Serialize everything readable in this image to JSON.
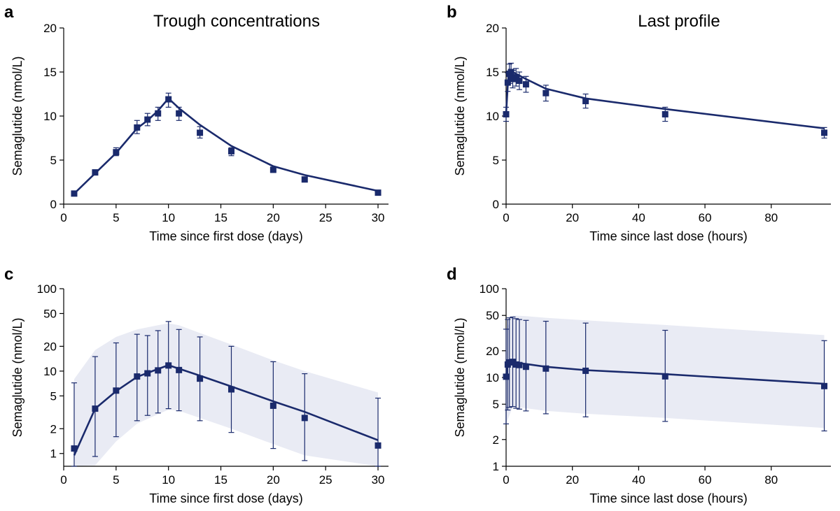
{
  "colors": {
    "series": "#1a2a6c",
    "band": "#e9ebf4",
    "axis": "#000000"
  },
  "chart_data": [
    {
      "id": "a",
      "panel_label": "a",
      "type": "line",
      "title": "Trough concentrations",
      "xlabel": "Time since first dose (days)",
      "ylabel": "Semaglutide (nmol/L)",
      "xlim": [
        0,
        31
      ],
      "ylim": [
        0,
        20
      ],
      "yscale": "linear",
      "xticks": [
        0,
        5,
        10,
        15,
        20,
        25,
        30
      ],
      "yticks": [
        0,
        5,
        10,
        15,
        20
      ],
      "observed": [
        {
          "x": 1,
          "y": 1.2,
          "lo": 1.1,
          "hi": 1.3
        },
        {
          "x": 3,
          "y": 3.6,
          "lo": 3.3,
          "hi": 3.9
        },
        {
          "x": 5,
          "y": 5.9,
          "lo": 5.5,
          "hi": 6.4
        },
        {
          "x": 7,
          "y": 8.7,
          "lo": 8.0,
          "hi": 9.5
        },
        {
          "x": 8,
          "y": 9.6,
          "lo": 8.9,
          "hi": 10.3
        },
        {
          "x": 9,
          "y": 10.3,
          "lo": 9.5,
          "hi": 11.0
        },
        {
          "x": 10,
          "y": 11.9,
          "lo": 11.0,
          "hi": 12.6
        },
        {
          "x": 11,
          "y": 10.3,
          "lo": 9.5,
          "hi": 11.0
        },
        {
          "x": 13,
          "y": 8.1,
          "lo": 7.5,
          "hi": 8.8
        },
        {
          "x": 16,
          "y": 6.0,
          "lo": 5.5,
          "hi": 6.4
        },
        {
          "x": 20,
          "y": 3.9,
          "lo": 3.6,
          "hi": 4.2
        },
        {
          "x": 23,
          "y": 2.8,
          "lo": 2.6,
          "hi": 3.0
        },
        {
          "x": 30,
          "y": 1.3,
          "lo": 1.2,
          "hi": 1.4
        }
      ],
      "model": {
        "x": [
          1,
          3,
          5,
          7,
          8,
          9,
          10,
          11,
          13,
          16,
          20,
          23,
          30
        ],
        "y": [
          1.2,
          3.5,
          5.8,
          8.6,
          9.5,
          10.6,
          12.0,
          10.9,
          9.0,
          6.6,
          4.3,
          3.3,
          1.5
        ]
      }
    },
    {
      "id": "b",
      "panel_label": "b",
      "type": "line",
      "title": "Last profile",
      "xlabel": "Time since last dose (hours)",
      "ylabel": "Semaglutide (nmol/L)",
      "xlim": [
        0,
        98
      ],
      "ylim": [
        0,
        20
      ],
      "yscale": "linear",
      "xticks": [
        0,
        20,
        40,
        60,
        80
      ],
      "yticks": [
        0,
        5,
        10,
        15,
        20
      ],
      "observed": [
        {
          "x": 0,
          "y": 10.2,
          "lo": 9.4,
          "hi": 11.0
        },
        {
          "x": 0.5,
          "y": 13.8,
          "lo": 12.8,
          "hi": 14.9
        },
        {
          "x": 1,
          "y": 14.8,
          "lo": 13.7,
          "hi": 15.9
        },
        {
          "x": 1.5,
          "y": 15.0,
          "lo": 14.0,
          "hi": 16.0
        },
        {
          "x": 2,
          "y": 14.2,
          "lo": 13.2,
          "hi": 15.2
        },
        {
          "x": 3,
          "y": 14.4,
          "lo": 13.4,
          "hi": 15.4
        },
        {
          "x": 4,
          "y": 14.0,
          "lo": 13.0,
          "hi": 15.0
        },
        {
          "x": 6,
          "y": 13.6,
          "lo": 12.7,
          "hi": 14.5
        },
        {
          "x": 12,
          "y": 12.6,
          "lo": 11.7,
          "hi": 13.5
        },
        {
          "x": 24,
          "y": 11.7,
          "lo": 10.9,
          "hi": 12.5
        },
        {
          "x": 48,
          "y": 10.2,
          "lo": 9.4,
          "hi": 11.0
        },
        {
          "x": 96,
          "y": 8.1,
          "lo": 7.5,
          "hi": 8.7
        }
      ],
      "model": {
        "x": [
          0,
          0.5,
          1,
          2,
          3,
          6,
          12,
          24,
          48,
          96
        ],
        "y": [
          10.3,
          13.5,
          14.6,
          15.0,
          14.8,
          14.2,
          13.1,
          12.0,
          10.8,
          8.6
        ]
      }
    },
    {
      "id": "c",
      "panel_label": "c",
      "type": "line",
      "title": "",
      "xlabel": "Time since first dose (days)",
      "ylabel": "Semaglutide (nmol/L)",
      "xlim": [
        0,
        31
      ],
      "ylim": [
        0.7,
        100
      ],
      "yscale": "log",
      "xticks": [
        0,
        5,
        10,
        15,
        20,
        25,
        30
      ],
      "yticks": [
        1,
        2,
        5,
        10,
        20,
        50,
        100
      ],
      "observed": [
        {
          "x": 1,
          "y": 1.15,
          "lo": 0.7,
          "hi": 7.2
        },
        {
          "x": 3,
          "y": 3.5,
          "lo": 0.92,
          "hi": 15.0
        },
        {
          "x": 5,
          "y": 5.8,
          "lo": 1.6,
          "hi": 22.0
        },
        {
          "x": 7,
          "y": 8.6,
          "lo": 2.5,
          "hi": 28.0
        },
        {
          "x": 8,
          "y": 9.4,
          "lo": 2.9,
          "hi": 27.0
        },
        {
          "x": 9,
          "y": 10.2,
          "lo": 3.1,
          "hi": 31.0
        },
        {
          "x": 10,
          "y": 11.7,
          "lo": 3.5,
          "hi": 40.0
        },
        {
          "x": 11,
          "y": 10.3,
          "lo": 3.3,
          "hi": 32.0
        },
        {
          "x": 13,
          "y": 8.1,
          "lo": 2.5,
          "hi": 26.0
        },
        {
          "x": 16,
          "y": 6.0,
          "lo": 1.8,
          "hi": 20.0
        },
        {
          "x": 20,
          "y": 3.8,
          "lo": 1.15,
          "hi": 13.0
        },
        {
          "x": 23,
          "y": 2.7,
          "lo": 0.82,
          "hi": 9.3
        },
        {
          "x": 30,
          "y": 1.25,
          "lo": 0.7,
          "hi": 4.7
        }
      ],
      "model": {
        "x": [
          1,
          3,
          5,
          7,
          8,
          9,
          10,
          11,
          13,
          16,
          20,
          23,
          30
        ],
        "y": [
          0.95,
          3.5,
          5.7,
          8.5,
          9.5,
          10.6,
          11.8,
          10.7,
          8.8,
          6.5,
          4.3,
          3.2,
          1.45
        ]
      },
      "band": {
        "x": [
          1,
          3,
          5,
          7,
          9,
          10,
          11,
          13,
          16,
          20,
          23,
          30
        ],
        "lo": [
          0.7,
          0.72,
          1.4,
          2.3,
          3.0,
          3.4,
          3.3,
          2.7,
          2.0,
          1.3,
          0.95,
          0.7
        ],
        "hi": [
          8.0,
          18.0,
          26.0,
          32.0,
          36.0,
          38.0,
          36.0,
          29.0,
          21.0,
          13.5,
          10.0,
          5.5
        ]
      }
    },
    {
      "id": "d",
      "panel_label": "d",
      "type": "line",
      "title": "",
      "xlabel": "Time since last dose (hours)",
      "ylabel": "Semaglutide (nmol/L)",
      "xlim": [
        0,
        98
      ],
      "ylim": [
        1,
        100
      ],
      "yscale": "log",
      "xticks": [
        0,
        20,
        40,
        60,
        80
      ],
      "yticks": [
        1,
        2,
        5,
        10,
        20,
        50,
        100
      ],
      "observed": [
        {
          "x": 0,
          "y": 10.2,
          "lo": 3.0,
          "hi": 35.0
        },
        {
          "x": 0.5,
          "y": 14.0,
          "lo": 4.3,
          "hi": 45.0
        },
        {
          "x": 1,
          "y": 14.8,
          "lo": 4.6,
          "hi": 47.0
        },
        {
          "x": 2,
          "y": 15.0,
          "lo": 4.7,
          "hi": 48.0
        },
        {
          "x": 3,
          "y": 14.0,
          "lo": 4.5,
          "hi": 46.0
        },
        {
          "x": 4,
          "y": 13.8,
          "lo": 4.4,
          "hi": 45.0
        },
        {
          "x": 6,
          "y": 13.2,
          "lo": 4.2,
          "hi": 44.0
        },
        {
          "x": 12,
          "y": 12.6,
          "lo": 3.9,
          "hi": 43.0
        },
        {
          "x": 24,
          "y": 11.9,
          "lo": 3.6,
          "hi": 41.0
        },
        {
          "x": 48,
          "y": 10.3,
          "lo": 3.2,
          "hi": 34.0
        },
        {
          "x": 96,
          "y": 8.0,
          "lo": 2.5,
          "hi": 26.0
        }
      ],
      "model": {
        "x": [
          0,
          0.5,
          1,
          2,
          3,
          6,
          12,
          24,
          48,
          96
        ],
        "y": [
          10.3,
          13.8,
          14.5,
          14.9,
          14.7,
          14.2,
          13.2,
          12.1,
          10.9,
          8.5
        ]
      },
      "band": {
        "x": [
          0,
          2,
          6,
          12,
          24,
          48,
          96
        ],
        "lo": [
          3.0,
          4.7,
          4.5,
          4.2,
          3.9,
          3.5,
          2.7
        ],
        "hi": [
          34.0,
          50.0,
          49.0,
          47.0,
          44.0,
          39.0,
          30.0
        ]
      }
    }
  ]
}
